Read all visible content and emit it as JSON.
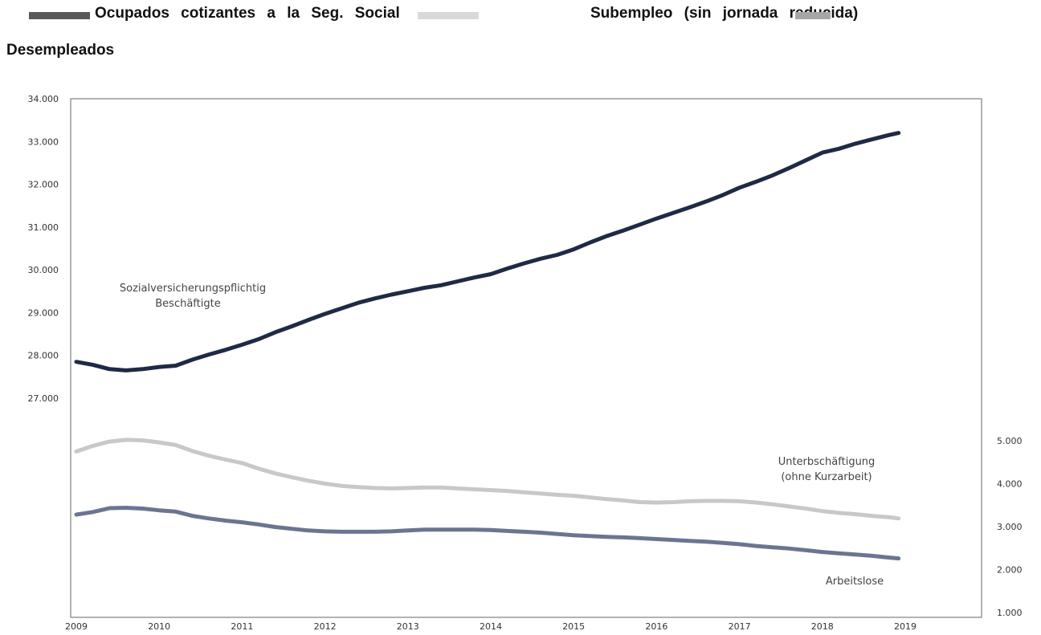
{
  "legend": {
    "item1": "Ocupados cotizantes a la Seg. Social",
    "item2": "Subempleo (sin jornada reducida)",
    "item3": "Desempleados",
    "color1": "#595959",
    "color2": "#d9d9d9",
    "color3": "#a6a6a6"
  },
  "chart_data": {
    "type": "line",
    "title": "",
    "xlabel": "",
    "x_ticks": [
      "2009",
      "2010",
      "2011",
      "2012",
      "2013",
      "2014",
      "2015",
      "2016",
      "2017",
      "2018",
      "2019"
    ],
    "left_axis": {
      "ylim": [
        26000,
        34000
      ],
      "ticks": [
        "34.000",
        "33.000",
        "32.000",
        "31.000",
        "30.000",
        "29.000",
        "28.000",
        "27.000"
      ]
    },
    "right_axis": {
      "ylim": [
        1000,
        5000
      ],
      "ticks": [
        "5.000",
        "4.000",
        "3.000",
        "2.000",
        "1.000"
      ]
    },
    "grid": false,
    "series": [
      {
        "name": "Sozialversicherungspflichtig Beschäftigte",
        "axis": "left",
        "color": "#1f2a44",
        "points": [
          [
            2009.0,
            27850
          ],
          [
            2009.2,
            27780
          ],
          [
            2009.4,
            27680
          ],
          [
            2009.6,
            27650
          ],
          [
            2009.8,
            27680
          ],
          [
            2010.0,
            27730
          ],
          [
            2010.2,
            27760
          ],
          [
            2010.4,
            27900
          ],
          [
            2010.6,
            28020
          ],
          [
            2010.8,
            28130
          ],
          [
            2011.0,
            28250
          ],
          [
            2011.2,
            28380
          ],
          [
            2011.4,
            28540
          ],
          [
            2011.6,
            28680
          ],
          [
            2011.8,
            28830
          ],
          [
            2012.0,
            28970
          ],
          [
            2012.2,
            29100
          ],
          [
            2012.4,
            29230
          ],
          [
            2012.6,
            29330
          ],
          [
            2012.8,
            29420
          ],
          [
            2013.0,
            29500
          ],
          [
            2013.2,
            29580
          ],
          [
            2013.4,
            29640
          ],
          [
            2013.6,
            29730
          ],
          [
            2013.8,
            29820
          ],
          [
            2014.0,
            29900
          ],
          [
            2014.2,
            30030
          ],
          [
            2014.4,
            30150
          ],
          [
            2014.6,
            30260
          ],
          [
            2014.8,
            30350
          ],
          [
            2015.0,
            30480
          ],
          [
            2015.2,
            30640
          ],
          [
            2015.4,
            30790
          ],
          [
            2015.6,
            30920
          ],
          [
            2015.8,
            31060
          ],
          [
            2016.0,
            31200
          ],
          [
            2016.2,
            31330
          ],
          [
            2016.4,
            31460
          ],
          [
            2016.6,
            31600
          ],
          [
            2016.8,
            31750
          ],
          [
            2017.0,
            31920
          ],
          [
            2017.2,
            32060
          ],
          [
            2017.4,
            32210
          ],
          [
            2017.6,
            32380
          ],
          [
            2017.8,
            32560
          ],
          [
            2018.0,
            32740
          ],
          [
            2018.2,
            32830
          ],
          [
            2018.4,
            32950
          ],
          [
            2018.6,
            33050
          ],
          [
            2018.8,
            33150
          ],
          [
            2018.92,
            33200
          ]
        ]
      },
      {
        "name": "Unterbschäftigung (ohne Kurzarbeit)",
        "axis": "right",
        "color": "#c8c8c8",
        "points": [
          [
            2009.0,
            4750
          ],
          [
            2009.2,
            4880
          ],
          [
            2009.4,
            4980
          ],
          [
            2009.6,
            5020
          ],
          [
            2009.8,
            5010
          ],
          [
            2010.0,
            4960
          ],
          [
            2010.2,
            4900
          ],
          [
            2010.4,
            4760
          ],
          [
            2010.6,
            4650
          ],
          [
            2010.8,
            4560
          ],
          [
            2011.0,
            4480
          ],
          [
            2011.2,
            4350
          ],
          [
            2011.4,
            4240
          ],
          [
            2011.6,
            4150
          ],
          [
            2011.8,
            4070
          ],
          [
            2012.0,
            4000
          ],
          [
            2012.2,
            3950
          ],
          [
            2012.4,
            3920
          ],
          [
            2012.6,
            3900
          ],
          [
            2012.8,
            3890
          ],
          [
            2013.0,
            3900
          ],
          [
            2013.2,
            3910
          ],
          [
            2013.4,
            3910
          ],
          [
            2013.6,
            3890
          ],
          [
            2013.8,
            3870
          ],
          [
            2014.0,
            3850
          ],
          [
            2014.2,
            3830
          ],
          [
            2014.4,
            3800
          ],
          [
            2014.6,
            3770
          ],
          [
            2014.8,
            3740
          ],
          [
            2015.0,
            3720
          ],
          [
            2015.2,
            3680
          ],
          [
            2015.4,
            3640
          ],
          [
            2015.6,
            3610
          ],
          [
            2015.8,
            3570
          ],
          [
            2016.0,
            3560
          ],
          [
            2016.2,
            3570
          ],
          [
            2016.4,
            3590
          ],
          [
            2016.6,
            3600
          ],
          [
            2016.8,
            3600
          ],
          [
            2017.0,
            3590
          ],
          [
            2017.2,
            3560
          ],
          [
            2017.4,
            3520
          ],
          [
            2017.6,
            3470
          ],
          [
            2017.8,
            3420
          ],
          [
            2018.0,
            3360
          ],
          [
            2018.2,
            3320
          ],
          [
            2018.4,
            3290
          ],
          [
            2018.6,
            3250
          ],
          [
            2018.8,
            3220
          ],
          [
            2018.92,
            3190
          ]
        ]
      },
      {
        "name": "Arbeitslose",
        "axis": "right",
        "color": "#6b7590",
        "points": [
          [
            2009.0,
            3280
          ],
          [
            2009.2,
            3340
          ],
          [
            2009.4,
            3430
          ],
          [
            2009.6,
            3440
          ],
          [
            2009.8,
            3420
          ],
          [
            2010.0,
            3380
          ],
          [
            2010.2,
            3350
          ],
          [
            2010.4,
            3250
          ],
          [
            2010.6,
            3190
          ],
          [
            2010.8,
            3140
          ],
          [
            2011.0,
            3100
          ],
          [
            2011.2,
            3050
          ],
          [
            2011.4,
            2990
          ],
          [
            2011.6,
            2950
          ],
          [
            2011.8,
            2910
          ],
          [
            2012.0,
            2890
          ],
          [
            2012.2,
            2880
          ],
          [
            2012.4,
            2880
          ],
          [
            2012.6,
            2880
          ],
          [
            2012.8,
            2890
          ],
          [
            2013.0,
            2910
          ],
          [
            2013.2,
            2930
          ],
          [
            2013.4,
            2930
          ],
          [
            2013.6,
            2930
          ],
          [
            2013.8,
            2930
          ],
          [
            2014.0,
            2920
          ],
          [
            2014.2,
            2900
          ],
          [
            2014.4,
            2880
          ],
          [
            2014.6,
            2860
          ],
          [
            2014.8,
            2830
          ],
          [
            2015.0,
            2800
          ],
          [
            2015.2,
            2780
          ],
          [
            2015.4,
            2760
          ],
          [
            2015.6,
            2750
          ],
          [
            2015.8,
            2730
          ],
          [
            2016.0,
            2710
          ],
          [
            2016.2,
            2690
          ],
          [
            2016.4,
            2670
          ],
          [
            2016.6,
            2650
          ],
          [
            2016.8,
            2620
          ],
          [
            2017.0,
            2590
          ],
          [
            2017.2,
            2550
          ],
          [
            2017.4,
            2520
          ],
          [
            2017.6,
            2490
          ],
          [
            2017.8,
            2450
          ],
          [
            2018.0,
            2410
          ],
          [
            2018.2,
            2380
          ],
          [
            2018.4,
            2350
          ],
          [
            2018.6,
            2320
          ],
          [
            2018.8,
            2280
          ],
          [
            2018.92,
            2260
          ]
        ]
      }
    ],
    "annotations": {
      "label1_line1": "Sozialversicherungspflichtig",
      "label1_line2": "Beschäftigte",
      "label2_line1": "Unterbschäftigung",
      "label2_line2": "(ohne Kurzarbeit)",
      "label3": "Arbeitslose"
    }
  }
}
